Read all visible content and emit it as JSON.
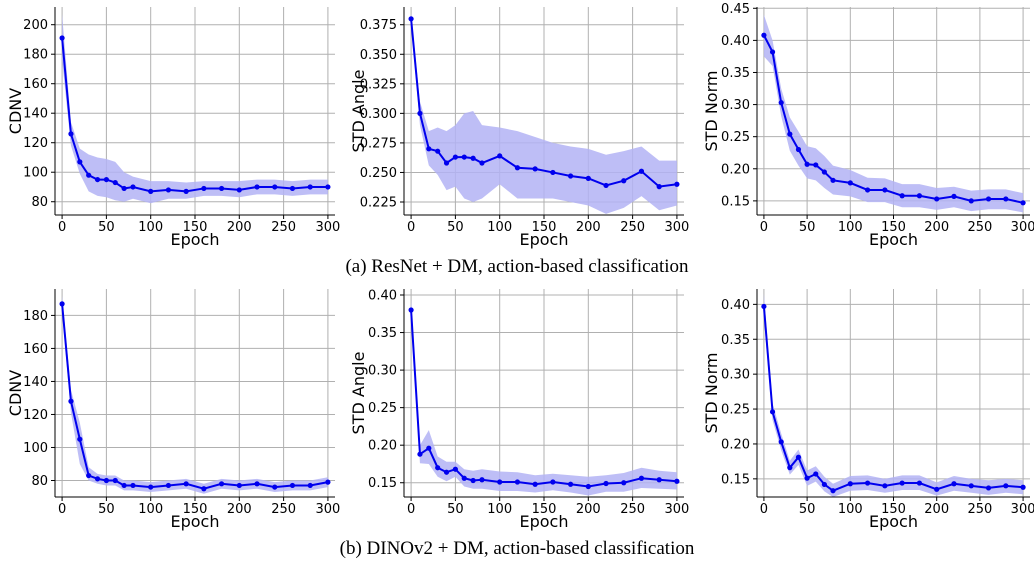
{
  "figure": {
    "caption_a": "(a) ResNet + DM, action-based classification",
    "caption_b": "(b) DINOv2 + DM, action-based classification",
    "colors": {
      "line": "#0000ee",
      "band": "#b3b3f5",
      "grid": "#b0b0b0"
    }
  },
  "chart_data": [
    {
      "type": "line",
      "panel": "a1",
      "xlabel": "Epoch",
      "ylabel": "CDNV",
      "xlim": [
        -8,
        308
      ],
      "ylim": [
        71,
        212
      ],
      "xticks": [
        0,
        50,
        100,
        150,
        200,
        250,
        300
      ],
      "yticks": [
        80,
        100,
        120,
        140,
        160,
        180,
        200
      ],
      "ytick_labels": [
        "80",
        "100",
        "120",
        "140",
        "160",
        "180",
        "200"
      ],
      "x": [
        0,
        10,
        20,
        30,
        40,
        50,
        60,
        70,
        80,
        100,
        120,
        140,
        160,
        180,
        200,
        220,
        240,
        260,
        280,
        300
      ],
      "y": [
        191,
        126,
        107,
        98,
        95,
        95,
        93,
        89,
        90,
        87,
        88,
        87,
        89,
        89,
        88,
        90,
        90,
        89,
        90,
        90
      ],
      "upper": [
        207,
        134,
        116,
        112,
        110,
        109,
        107,
        100,
        97,
        94,
        94,
        93,
        94,
        94,
        94,
        95,
        95,
        94,
        95,
        95
      ],
      "lower": [
        176,
        118,
        99,
        87,
        84,
        83,
        81,
        80,
        82,
        79,
        82,
        82,
        84,
        84,
        83,
        85,
        85,
        84,
        85,
        85
      ]
    },
    {
      "type": "line",
      "panel": "a2",
      "xlabel": "Epoch",
      "ylabel": "STD Angle",
      "xlim": [
        -8,
        308
      ],
      "ylim": [
        0.214,
        0.39
      ],
      "xticks": [
        0,
        50,
        100,
        150,
        200,
        250,
        300
      ],
      "yticks": [
        0.225,
        0.25,
        0.275,
        0.3,
        0.325,
        0.35,
        0.375
      ],
      "ytick_labels": [
        "0.225",
        "0.250",
        "0.275",
        "0.300",
        "0.325",
        "0.350",
        "0.375"
      ],
      "x": [
        0,
        10,
        20,
        30,
        40,
        50,
        60,
        70,
        80,
        100,
        120,
        140,
        160,
        180,
        200,
        220,
        240,
        260,
        280,
        300
      ],
      "y": [
        0.38,
        0.3,
        0.27,
        0.268,
        0.258,
        0.263,
        0.263,
        0.262,
        0.258,
        0.264,
        0.254,
        0.253,
        0.25,
        0.247,
        0.245,
        0.239,
        0.243,
        0.251,
        0.238,
        0.24
      ],
      "upper": [
        0.385,
        0.31,
        0.285,
        0.288,
        0.285,
        0.29,
        0.3,
        0.302,
        0.29,
        0.288,
        0.285,
        0.28,
        0.275,
        0.272,
        0.27,
        0.265,
        0.268,
        0.272,
        0.26,
        0.26
      ],
      "lower": [
        0.375,
        0.29,
        0.256,
        0.248,
        0.235,
        0.238,
        0.228,
        0.225,
        0.228,
        0.24,
        0.228,
        0.228,
        0.228,
        0.225,
        0.222,
        0.215,
        0.22,
        0.23,
        0.218,
        0.222
      ]
    },
    {
      "type": "line",
      "panel": "a3",
      "xlabel": "Epoch",
      "ylabel": "STD Norm",
      "xlim": [
        -8,
        308
      ],
      "ylim": [
        0.128,
        0.452
      ],
      "xticks": [
        0,
        50,
        100,
        150,
        200,
        250,
        300
      ],
      "yticks": [
        0.15,
        0.2,
        0.25,
        0.3,
        0.35,
        0.4,
        0.45
      ],
      "ytick_labels": [
        "0.15",
        "0.20",
        "0.25",
        "0.30",
        "0.35",
        "0.40",
        "0.45"
      ],
      "x": [
        0,
        10,
        20,
        30,
        40,
        50,
        60,
        70,
        80,
        100,
        120,
        140,
        160,
        180,
        200,
        220,
        240,
        260,
        280,
        300
      ],
      "y": [
        0.408,
        0.382,
        0.303,
        0.254,
        0.23,
        0.207,
        0.206,
        0.195,
        0.182,
        0.178,
        0.167,
        0.167,
        0.158,
        0.158,
        0.153,
        0.157,
        0.15,
        0.153,
        0.153,
        0.147
      ],
      "upper": [
        0.44,
        0.4,
        0.325,
        0.28,
        0.258,
        0.235,
        0.232,
        0.22,
        0.205,
        0.198,
        0.186,
        0.185,
        0.176,
        0.176,
        0.17,
        0.172,
        0.166,
        0.168,
        0.168,
        0.162
      ],
      "lower": [
        0.375,
        0.36,
        0.282,
        0.228,
        0.205,
        0.185,
        0.182,
        0.17,
        0.16,
        0.157,
        0.148,
        0.148,
        0.14,
        0.14,
        0.136,
        0.14,
        0.134,
        0.137,
        0.137,
        0.132
      ]
    },
    {
      "type": "line",
      "panel": "b1",
      "xlabel": "Epoch",
      "ylabel": "CDNV",
      "xlim": [
        -8,
        308
      ],
      "ylim": [
        70,
        196
      ],
      "xticks": [
        0,
        50,
        100,
        150,
        200,
        250,
        300
      ],
      "yticks": [
        80,
        100,
        120,
        140,
        160,
        180
      ],
      "ytick_labels": [
        "80",
        "100",
        "120",
        "140",
        "160",
        "180"
      ],
      "x": [
        0,
        10,
        20,
        30,
        40,
        50,
        60,
        70,
        80,
        100,
        120,
        140,
        160,
        180,
        200,
        220,
        240,
        260,
        280,
        300
      ],
      "y": [
        187,
        128,
        105,
        83,
        81,
        80,
        80,
        77,
        77,
        76,
        77,
        78,
        75,
        78,
        77,
        78,
        76,
        77,
        77,
        79
      ],
      "upper": [
        192,
        135,
        115,
        88,
        84,
        83,
        83,
        80,
        80,
        79,
        80,
        81,
        78,
        81,
        80,
        81,
        79,
        80,
        80,
        82
      ],
      "lower": [
        182,
        121,
        90,
        80,
        78,
        77,
        77,
        74,
        74,
        73,
        74,
        75,
        72,
        75,
        74,
        75,
        73,
        74,
        74,
        76
      ]
    },
    {
      "type": "line",
      "panel": "b2",
      "xlabel": "Epoch",
      "ylabel": "STD Angle",
      "xlim": [
        -8,
        308
      ],
      "ylim": [
        0.131,
        0.408
      ],
      "xticks": [
        0,
        50,
        100,
        150,
        200,
        250,
        300
      ],
      "yticks": [
        0.15,
        0.2,
        0.25,
        0.3,
        0.35,
        0.4
      ],
      "ytick_labels": [
        "0.15",
        "0.20",
        "0.25",
        "0.30",
        "0.35",
        "0.40"
      ],
      "x": [
        0,
        10,
        20,
        30,
        40,
        50,
        60,
        70,
        80,
        100,
        120,
        140,
        160,
        180,
        200,
        220,
        240,
        260,
        280,
        300
      ],
      "y": [
        0.38,
        0.188,
        0.196,
        0.17,
        0.164,
        0.168,
        0.156,
        0.153,
        0.154,
        0.151,
        0.151,
        0.148,
        0.151,
        0.148,
        0.145,
        0.149,
        0.15,
        0.156,
        0.154,
        0.152
      ],
      "upper": [
        0.395,
        0.2,
        0.22,
        0.185,
        0.178,
        0.178,
        0.168,
        0.166,
        0.168,
        0.165,
        0.164,
        0.16,
        0.162,
        0.16,
        0.158,
        0.16,
        0.163,
        0.17,
        0.166,
        0.164
      ],
      "lower": [
        0.365,
        0.176,
        0.175,
        0.158,
        0.152,
        0.158,
        0.145,
        0.142,
        0.142,
        0.139,
        0.139,
        0.137,
        0.14,
        0.137,
        0.133,
        0.138,
        0.138,
        0.143,
        0.142,
        0.141
      ]
    },
    {
      "type": "line",
      "panel": "b3",
      "xlabel": "Epoch",
      "ylabel": "STD Norm",
      "xlim": [
        -8,
        308
      ],
      "ylim": [
        0.124,
        0.422
      ],
      "xticks": [
        0,
        50,
        100,
        150,
        200,
        250,
        300
      ],
      "yticks": [
        0.15,
        0.2,
        0.25,
        0.3,
        0.35,
        0.4
      ],
      "ytick_labels": [
        "0.15",
        "0.20",
        "0.25",
        "0.30",
        "0.35",
        "0.40"
      ],
      "x": [
        0,
        10,
        20,
        30,
        40,
        50,
        60,
        70,
        80,
        100,
        120,
        140,
        160,
        180,
        200,
        220,
        240,
        260,
        280,
        300
      ],
      "y": [
        0.397,
        0.246,
        0.203,
        0.166,
        0.181,
        0.151,
        0.157,
        0.142,
        0.133,
        0.143,
        0.144,
        0.14,
        0.144,
        0.144,
        0.135,
        0.143,
        0.14,
        0.137,
        0.14,
        0.138
      ],
      "upper": [
        0.415,
        0.258,
        0.215,
        0.176,
        0.192,
        0.162,
        0.168,
        0.153,
        0.143,
        0.154,
        0.155,
        0.15,
        0.155,
        0.155,
        0.145,
        0.154,
        0.15,
        0.148,
        0.15,
        0.148
      ],
      "lower": [
        0.38,
        0.234,
        0.191,
        0.156,
        0.17,
        0.14,
        0.146,
        0.132,
        0.124,
        0.133,
        0.134,
        0.13,
        0.134,
        0.134,
        0.126,
        0.133,
        0.13,
        0.127,
        0.13,
        0.128
      ]
    }
  ]
}
